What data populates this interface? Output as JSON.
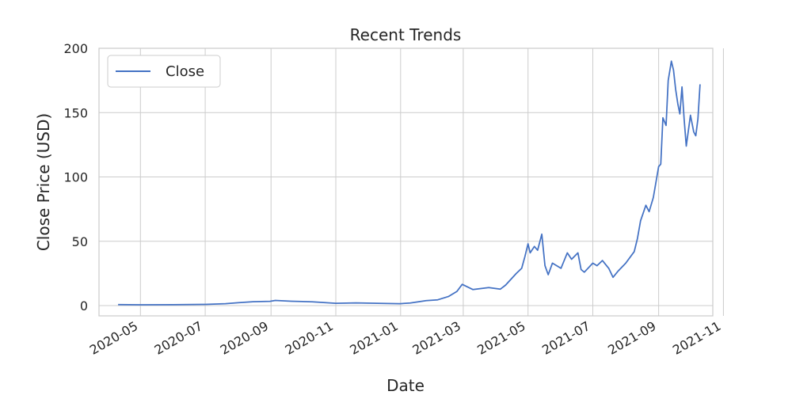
{
  "chart_data": {
    "type": "line",
    "title": "Recent Trends",
    "xlabel": "Date",
    "ylabel": "Close Price (USD)",
    "xlim": [
      "2020-03-23",
      "2021-10-22"
    ],
    "ylim": [
      -8,
      200
    ],
    "yticks": [
      0,
      50,
      100,
      150,
      200
    ],
    "xticks": [
      "2020-05",
      "2020-07",
      "2020-09",
      "2020-11",
      "2021-01",
      "2021-03",
      "2021-05",
      "2021-07",
      "2021-09",
      "2021-11"
    ],
    "grid": true,
    "legend": {
      "placement": "top-left"
    },
    "line_color": "#4472c4",
    "series": [
      {
        "name": "Close",
        "x": [
          "2020-04-10",
          "2020-05-01",
          "2020-06-01",
          "2020-07-01",
          "2020-07-20",
          "2020-08-01",
          "2020-08-15",
          "2020-08-31",
          "2020-09-05",
          "2020-09-20",
          "2020-10-10",
          "2020-11-01",
          "2020-11-20",
          "2020-12-10",
          "2020-12-31",
          "2021-01-10",
          "2021-01-25",
          "2021-02-05",
          "2021-02-15",
          "2021-02-23",
          "2021-02-28",
          "2021-03-10",
          "2021-03-25",
          "2021-04-05",
          "2021-04-10",
          "2021-04-20",
          "2021-04-25",
          "2021-04-28",
          "2021-05-01",
          "2021-05-03",
          "2021-05-07",
          "2021-05-10",
          "2021-05-14",
          "2021-05-17",
          "2021-05-20",
          "2021-05-24",
          "2021-06-01",
          "2021-06-07",
          "2021-06-11",
          "2021-06-17",
          "2021-06-20",
          "2021-06-23",
          "2021-07-01",
          "2021-07-05",
          "2021-07-10",
          "2021-07-16",
          "2021-07-20",
          "2021-07-25",
          "2021-08-01",
          "2021-08-09",
          "2021-08-12",
          "2021-08-15",
          "2021-08-20",
          "2021-08-23",
          "2021-08-27",
          "2021-09-01",
          "2021-09-03",
          "2021-09-05",
          "2021-09-08",
          "2021-09-10",
          "2021-09-13",
          "2021-09-15",
          "2021-09-17",
          "2021-09-19",
          "2021-09-21",
          "2021-09-23",
          "2021-09-25",
          "2021-09-27",
          "2021-10-01",
          "2021-10-04",
          "2021-10-06",
          "2021-10-08",
          "2021-10-10"
        ],
        "values": [
          0.8,
          0.6,
          0.7,
          0.9,
          1.5,
          2.2,
          3.0,
          3.3,
          4.0,
          3.4,
          2.9,
          1.8,
          2.1,
          1.8,
          1.5,
          2.0,
          3.8,
          4.5,
          7.0,
          11.0,
          16.5,
          12.5,
          14.0,
          12.8,
          16.0,
          25.0,
          29.0,
          38.0,
          48.0,
          41.0,
          46.0,
          43.0,
          55.5,
          31.0,
          24.0,
          33.0,
          29.0,
          41.0,
          36.0,
          41.0,
          28.0,
          26.0,
          33.0,
          31.0,
          35.0,
          29.0,
          22.0,
          27.0,
          33.0,
          42.0,
          52.0,
          66.0,
          78.0,
          73.0,
          84.0,
          108.0,
          110.0,
          146.0,
          140.0,
          175.0,
          190.0,
          183.0,
          168.0,
          157.0,
          149.0,
          170.0,
          145.0,
          124.0,
          148.0,
          135.0,
          132.0,
          145.0,
          172.0
        ]
      }
    ]
  }
}
